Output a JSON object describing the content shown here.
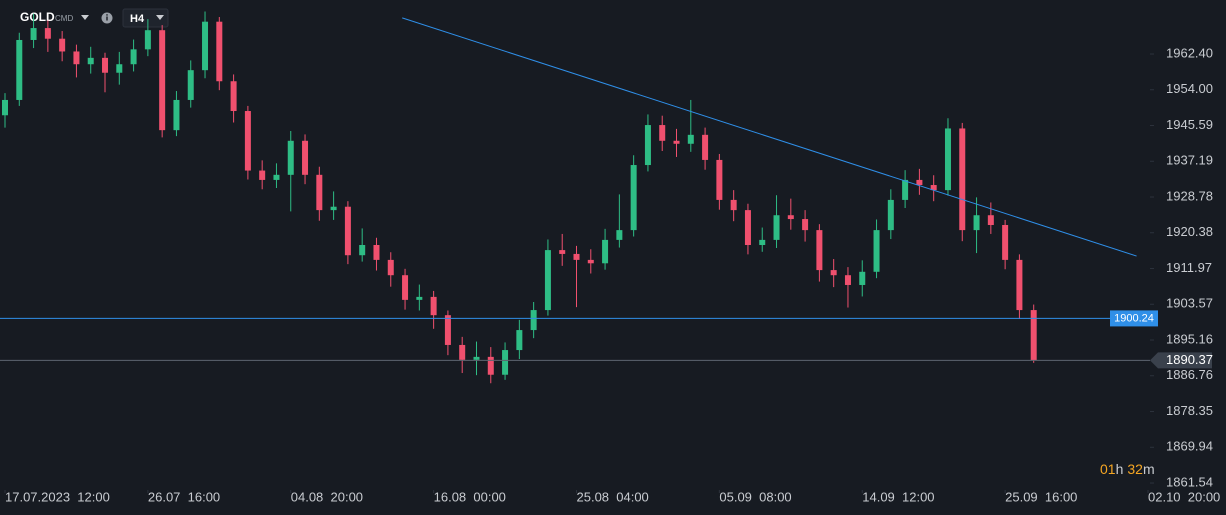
{
  "header": {
    "symbol": "GOLD",
    "market": "CMD",
    "timeframe": "H4"
  },
  "chart_data": {
    "type": "candlestick",
    "up_color": "#2ebd85",
    "down_color": "#f0506e",
    "x": [
      0,
      1,
      2,
      3,
      4,
      5,
      6,
      7,
      8,
      9,
      10,
      11,
      12,
      13,
      14,
      15,
      16,
      17,
      18,
      19,
      20,
      21,
      22,
      23,
      24,
      25,
      26,
      27,
      28,
      29,
      30,
      31,
      32,
      33,
      34,
      35,
      36,
      37,
      38,
      39,
      40,
      41,
      42,
      43,
      44,
      45,
      46,
      47,
      48,
      49,
      50,
      51,
      52,
      53,
      54,
      55,
      56,
      57,
      58,
      59,
      60,
      61,
      62,
      63,
      64,
      65,
      66,
      67,
      68,
      69,
      70,
      71,
      72
    ],
    "open": [
      1948,
      1951.6,
      1965.7,
      1968.5,
      1966,
      1963,
      1960,
      1961.5,
      1958,
      1960,
      1963.5,
      1968,
      1944.5,
      1951.6,
      1958.6,
      1970,
      1956,
      1949,
      1935,
      1932.8,
      1934,
      1942,
      1934,
      1925.7,
      1926.5,
      1915.1,
      1917.5,
      1914,
      1910.4,
      1904.6,
      1905.3,
      1901,
      1894,
      1890.5,
      1891.2,
      1887,
      1892.8,
      1897.5,
      1902.2,
      1916.3,
      1915.4,
      1914,
      1913.2,
      1918.7,
      1921,
      1936.3,
      1945.7,
      1942,
      1941.3,
      1943.4,
      1937.5,
      1928.1,
      1925.7,
      1917.5,
      1918.7,
      1924.5,
      1923.6,
      1921,
      1911.6,
      1910.4,
      1908.1,
      1911.2,
      1921,
      1928.1,
      1932.8,
      1931.6,
      1930.4,
      1944.9,
      1921,
      1924.5,
      1922.2,
      1914,
      1902.2
    ],
    "high": [
      1953.2,
      1967.4,
      1971.9,
      1970.3,
      1967.8,
      1964.6,
      1964.1,
      1962.7,
      1962.9,
      1965.8,
      1970.6,
      1969.2,
      1953.7,
      1960.9,
      1972.4,
      1971.1,
      1957.6,
      1950.2,
      1937.4,
      1936.7,
      1944.3,
      1943.5,
      1935.9,
      1930.1,
      1927.8,
      1921.4,
      1919.2,
      1915.8,
      1911.9,
      1908.2,
      1906.7,
      1902.1,
      1895.9,
      1894.8,
      1893.5,
      1894.6,
      1899.9,
      1904.1,
      1918.8,
      1920.1,
      1917.3,
      1916.5,
      1921.3,
      1929.4,
      1938.6,
      1948.2,
      1947.9,
      1944.8,
      1951.6,
      1945.1,
      1938.9,
      1930.4,
      1927.2,
      1921.6,
      1929.2,
      1928.4,
      1925.7,
      1922.4,
      1914.2,
      1912.3,
      1913.9,
      1923.5,
      1930.6,
      1935.1,
      1935.4,
      1933.9,
      1947.3,
      1946.2,
      1928.7,
      1927.5,
      1923.4,
      1915.3,
      1903.5
    ],
    "low": [
      1945.1,
      1950.2,
      1963.8,
      1962.9,
      1960.7,
      1956.9,
      1957.8,
      1953.4,
      1955.2,
      1958.3,
      1961.9,
      1942.8,
      1943.1,
      1949.8,
      1956.7,
      1953.9,
      1946.3,
      1932.9,
      1930.6,
      1930.9,
      1925.4,
      1931.8,
      1923.2,
      1923.4,
      1913,
      1913.6,
      1911.5,
      1907.7,
      1902.3,
      1902.1,
      1897.8,
      1891.6,
      1887.4,
      1886.9,
      1885,
      1885.8,
      1890.7,
      1895.6,
      1900.9,
      1912.6,
      1902.9,
      1910.8,
      1911.7,
      1916.9,
      1919.5,
      1934.8,
      1939.6,
      1938.2,
      1939.4,
      1935.2,
      1925.8,
      1923.1,
      1915.3,
      1915.9,
      1916.8,
      1921.1,
      1918.3,
      1908.9,
      1907.6,
      1902.8,
      1905.4,
      1909.7,
      1918.9,
      1926.2,
      1929.3,
      1927.8,
      1929.1,
      1918.4,
      1915.6,
      1920.1,
      1911.8,
      1900.1,
      1889.8
    ],
    "close": [
      1951.6,
      1965.7,
      1968.5,
      1966,
      1963,
      1960,
      1961.5,
      1958,
      1960,
      1963.5,
      1968,
      1944.5,
      1951.6,
      1958.6,
      1970,
      1956,
      1949,
      1935,
      1932.8,
      1934,
      1942,
      1934,
      1925.7,
      1926.5,
      1915.1,
      1917.5,
      1914,
      1910.4,
      1904.6,
      1905.3,
      1901,
      1894,
      1890.5,
      1891.2,
      1887,
      1892.8,
      1897.5,
      1902.2,
      1916.3,
      1915.4,
      1914,
      1913.2,
      1918.7,
      1921,
      1936.3,
      1945.7,
      1942,
      1941.3,
      1943.4,
      1937.5,
      1928.1,
      1925.7,
      1917.5,
      1918.7,
      1924.5,
      1923.6,
      1921,
      1911.6,
      1910.4,
      1908.1,
      1911.2,
      1921,
      1928.1,
      1932.8,
      1931.6,
      1930.4,
      1944.9,
      1921,
      1924.5,
      1922.2,
      1914,
      1902.2,
      1890.37
    ],
    "xlim": [
      0,
      80
    ],
    "xticks": [
      {
        "value": 0,
        "label": "17.07.2023  12:00"
      },
      {
        "value": 10,
        "label": "26.07  16:00"
      },
      {
        "value": 20,
        "label": "04.08  20:00"
      },
      {
        "value": 30,
        "label": "16.08  00:00"
      },
      {
        "value": 40,
        "label": "25.08  04:00"
      },
      {
        "value": 50,
        "label": "05.09  08:00"
      },
      {
        "value": 60,
        "label": "14.09  12:00"
      },
      {
        "value": 70,
        "label": "25.09  16:00"
      },
      {
        "value": 80,
        "label": "02.10  20:00"
      }
    ],
    "ylim": [
      1859.9,
      1975.1
    ],
    "yticks": [
      {
        "value": 1962.4,
        "label": "1962.40"
      },
      {
        "value": 1954,
        "label": "1954.00"
      },
      1945.59,
      1937.19,
      1928.78,
      1920.38,
      1911.97,
      1903.57,
      1895.16,
      1886.76,
      1878.35,
      1869.94,
      1861.54
    ],
    "trend_line": {
      "x": [
        27.8,
        79.2
      ],
      "y": [
        1970.9,
        1914.9
      ],
      "color": "#2f8fe8"
    },
    "level": {
      "value": 1900.24,
      "color": "#2f8fe8"
    },
    "last_price": 1890.37,
    "countdown": [
      "01",
      "h",
      "32",
      "m"
    ]
  }
}
